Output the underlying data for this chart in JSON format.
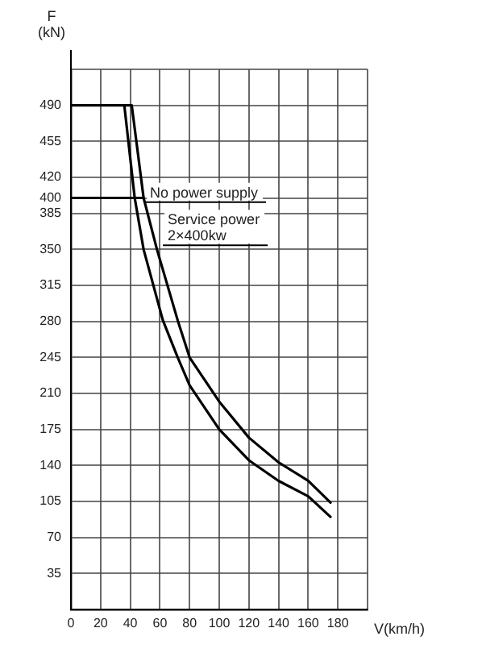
{
  "chart_data": {
    "type": "line",
    "xlabel": "V(km/h)",
    "ylabel": "F\n(kN)",
    "series": [
      {
        "color": "#000000",
        "x": [
          0,
          41,
          49,
          58,
          72,
          80,
          100,
          120,
          140,
          160,
          175
        ],
        "values": [
          490,
          490,
          400,
          350,
          281,
          245,
          202,
          167,
          143,
          125,
          104
        ]
      },
      {
        "color": "#000000",
        "x": [
          36,
          43,
          49,
          62,
          72,
          80,
          100,
          120,
          140,
          160,
          175
        ],
        "values": [
          490,
          400,
          350,
          281,
          245,
          218,
          175,
          145,
          125,
          110,
          90
        ]
      },
      {
        "color": "#000000",
        "x": [
          0,
          49
        ],
        "values": [
          400,
          400
        ]
      }
    ],
    "xlim": [
      0,
      200
    ],
    "xticks": [
      0,
      20,
      40,
      60,
      80,
      100,
      120,
      140,
      160,
      180,
      {
        "value": 200,
        "label": null
      }
    ],
    "ylim": [
      0,
      525
    ],
    "yticks": [
      {
        "value": 0,
        "label": null
      },
      35,
      70,
      105,
      140,
      175,
      210,
      245,
      280,
      315,
      350,
      385,
      400,
      420,
      455,
      490,
      {
        "value": 525,
        "label": null
      }
    ],
    "grid": true,
    "marker": "none",
    "line_style": "solid",
    "annotations": [
      {
        "text": "No power supply",
        "x": 50,
        "y": 396
      },
      {
        "text": "Service power\n2×400kw",
        "x": 62,
        "y": 354
      }
    ]
  }
}
